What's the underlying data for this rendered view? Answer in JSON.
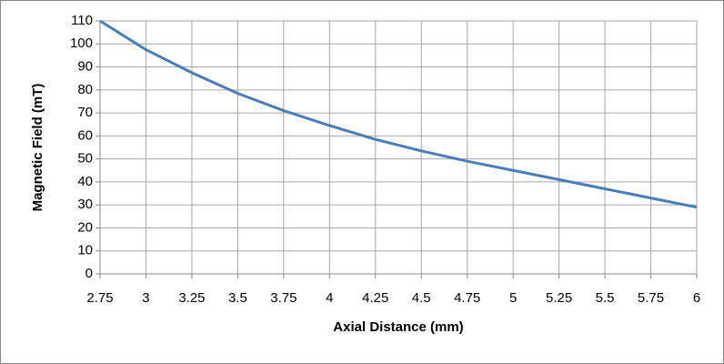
{
  "chart_data": {
    "type": "line",
    "x_label": "Axial Distance  (mm)",
    "y_label": "Magnetic Field (mT)",
    "x": [
      2.75,
      3,
      3.25,
      3.5,
      3.75,
      4,
      4.25,
      4.5,
      4.75,
      5,
      5.25,
      5.5,
      5.75,
      6
    ],
    "series": [
      {
        "name": "Magnetic Field",
        "color": "#4a7ebb",
        "values": [
          110,
          97.5,
          87.5,
          78.5,
          71,
          64.5,
          58.5,
          53.5,
          49,
          45,
          41,
          37,
          33,
          29
        ]
      }
    ],
    "xlim": [
      2.75,
      6
    ],
    "xticks": [
      2.75,
      3,
      3.25,
      3.5,
      3.75,
      4,
      4.25,
      4.5,
      4.75,
      5,
      5.25,
      5.5,
      5.75,
      6
    ],
    "ylim": [
      0,
      110
    ],
    "yticks": [
      0,
      10,
      20,
      30,
      40,
      50,
      60,
      70,
      80,
      90,
      100,
      110
    ],
    "grid": true
  }
}
